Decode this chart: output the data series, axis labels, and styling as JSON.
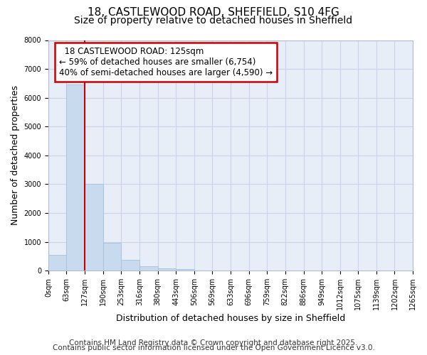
{
  "title": "18, CASTLEWOOD ROAD, SHEFFIELD, S10 4FG",
  "subtitle": "Size of property relative to detached houses in Sheffield",
  "xlabel": "Distribution of detached houses by size in Sheffield",
  "ylabel": "Number of detached properties",
  "bar_values": [
    550,
    6450,
    3000,
    975,
    375,
    150,
    75,
    50,
    0,
    0,
    0,
    0,
    0,
    0,
    0,
    0,
    0,
    0,
    0,
    0
  ],
  "bin_edges": [
    0,
    63,
    127,
    190,
    253,
    316,
    380,
    443,
    506,
    569,
    633,
    696,
    759,
    822,
    886,
    949,
    1012,
    1075,
    1139,
    1202,
    1265
  ],
  "tick_labels": [
    "0sqm",
    "63sqm",
    "127sqm",
    "190sqm",
    "253sqm",
    "316sqm",
    "380sqm",
    "443sqm",
    "506sqm",
    "569sqm",
    "633sqm",
    "696sqm",
    "759sqm",
    "822sqm",
    "886sqm",
    "949sqm",
    "1012sqm",
    "1075sqm",
    "1139sqm",
    "1202sqm",
    "1265sqm"
  ],
  "bar_color": "#c8daed",
  "bar_edge_color": "#a8c0d8",
  "property_line_x": 127,
  "property_line_color": "#cc0000",
  "annotation_title": "18 CASTLEWOOD ROAD: 125sqm",
  "annotation_line1": "← 59% of detached houses are smaller (6,754)",
  "annotation_line2": "40% of semi-detached houses are larger (4,590) →",
  "annotation_box_color": "#cc0000",
  "ylim": [
    0,
    8000
  ],
  "yticks": [
    0,
    1000,
    2000,
    3000,
    4000,
    5000,
    6000,
    7000,
    8000
  ],
  "grid_color": "#c8d4e8",
  "background_color": "#ffffff",
  "plot_bg_color": "#e8eef8",
  "footnote1": "Contains HM Land Registry data © Crown copyright and database right 2025.",
  "footnote2": "Contains public sector information licensed under the Open Government Licence v3.0.",
  "title_fontsize": 11,
  "subtitle_fontsize": 10,
  "xlabel_fontsize": 9,
  "ylabel_fontsize": 9,
  "tick_fontsize": 7,
  "annotation_fontsize": 8.5,
  "footnote_fontsize": 7.5
}
